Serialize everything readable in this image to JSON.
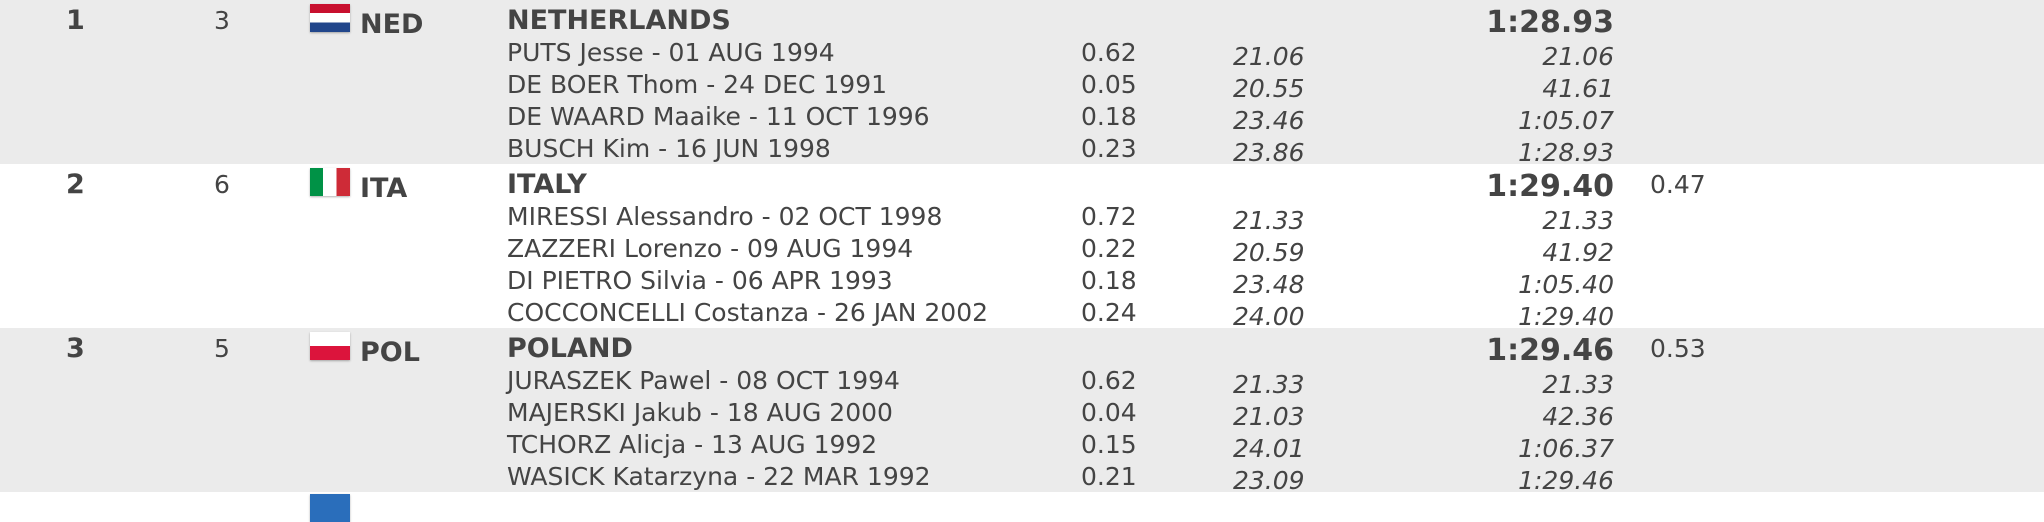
{
  "teams": [
    {
      "rank": "1",
      "lane": "3",
      "code": "NED",
      "name": "NETHERLANDS",
      "time": "1:28.93",
      "swimmers": [
        {
          "name": "PUTS Jesse - 01 AUG 1994",
          "reaction": "0.62",
          "split": "21.06",
          "cumulative": "21.06"
        },
        {
          "name": "DE BOER Thom - 24 DEC 1991",
          "reaction": "0.05",
          "split": "20.55",
          "cumulative": "41.61"
        },
        {
          "name": "DE WAARD Maaike - 11 OCT 1996",
          "reaction": "0.18",
          "split": "23.46",
          "cumulative": "1:05.07"
        },
        {
          "name": "BUSCH Kim - 16 JUN 1998",
          "reaction": "0.23",
          "split": "23.86",
          "cumulative": "1:28.93"
        }
      ]
    },
    {
      "rank": "2",
      "lane": "6",
      "code": "ITA",
      "name": "ITALY",
      "time": "1:29.40",
      "behind": "0.47",
      "swimmers": [
        {
          "name": "MIRESSI Alessandro - 02 OCT 1998",
          "reaction": "0.72",
          "split": "21.33",
          "cumulative": "21.33"
        },
        {
          "name": "ZAZZERI Lorenzo - 09 AUG 1994",
          "reaction": "0.22",
          "split": "20.59",
          "cumulative": "41.92"
        },
        {
          "name": "DI PIETRO Silvia - 06 APR 1993",
          "reaction": "0.18",
          "split": "23.48",
          "cumulative": "1:05.40"
        },
        {
          "name": "COCCONCELLI Costanza - 26 JAN 2002",
          "reaction": "0.24",
          "split": "24.00",
          "cumulative": "1:29.40"
        }
      ]
    },
    {
      "rank": "3",
      "lane": "5",
      "code": "POL",
      "name": "POLAND",
      "time": "1:29.46",
      "behind": "0.53",
      "swimmers": [
        {
          "name": "JURASZEK Pawel - 08 OCT 1994",
          "reaction": "0.62",
          "split": "21.33",
          "cumulative": "21.33"
        },
        {
          "name": "MAJERSKI Jakub - 18 AUG 2000",
          "reaction": "0.04",
          "split": "21.03",
          "cumulative": "42.36"
        },
        {
          "name": "TCHORZ Alicja - 13 AUG 1992",
          "reaction": "0.15",
          "split": "24.01",
          "cumulative": "1:06.37"
        },
        {
          "name": "WASICK Katarzyna - 22 MAR 1992",
          "reaction": "0.21",
          "split": "23.09",
          "cumulative": "1:29.46"
        }
      ]
    }
  ]
}
